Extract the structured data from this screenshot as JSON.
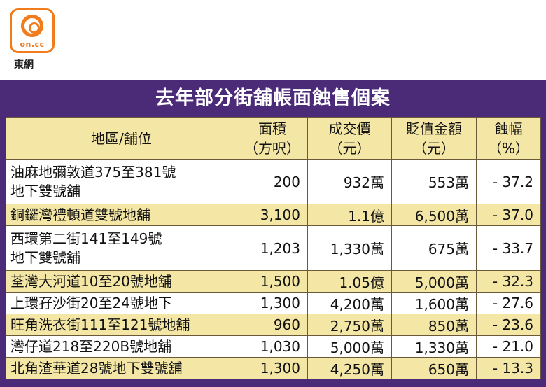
{
  "brand": {
    "logo_text": "on.cc",
    "name": "東網"
  },
  "title": "去年部分街舖帳面蝕售個案",
  "table": {
    "headers": [
      {
        "line1": "地區/舖位",
        "line2": ""
      },
      {
        "line1": "面積",
        "line2": "（方呎）"
      },
      {
        "line1": "成交價",
        "line2": "（元）"
      },
      {
        "line1": "貶值金額",
        "line2": "（元）"
      },
      {
        "line1": "蝕幅",
        "line2": "（%）"
      }
    ],
    "rows": [
      {
        "loc1": "油麻地彌敦道375至381號",
        "loc2": "地下雙號舖",
        "area": "200",
        "price": "932萬",
        "loss": "553萬",
        "pct": "- 37.2"
      },
      {
        "loc1": "銅鑼灣禮頓道雙號地舖",
        "loc2": "",
        "area": "3,100",
        "price": "1.1億",
        "loss": "6,500萬",
        "pct": "- 37.0"
      },
      {
        "loc1": "西環第二街141至149號",
        "loc2": "地下雙號舖",
        "area": "1,203",
        "price": "1,330萬",
        "loss": "675萬",
        "pct": "- 33.7"
      },
      {
        "loc1": "荃灣大河道10至20號地舖",
        "loc2": "",
        "area": "1,500",
        "price": "1.05億",
        "loss": "5,000萬",
        "pct": "- 32.3"
      },
      {
        "loc1": "上環孖沙街20至24號地下",
        "loc2": "",
        "area": "1,300",
        "price": "4,200萬",
        "loss": "1,600萬",
        "pct": "- 27.6"
      },
      {
        "loc1": "旺角洗衣街111至121號地舖",
        "loc2": "",
        "area": "960",
        "price": "2,750萬",
        "loss": "850萬",
        "pct": "- 23.6"
      },
      {
        "loc1": "灣仔道218至220B號地舖",
        "loc2": "",
        "area": "1,030",
        "price": "5,000萬",
        "loss": "1,330萬",
        "pct": "- 21.0"
      },
      {
        "loc1": "北角渣華道28號地下雙號舖",
        "loc2": "",
        "area": "1,300",
        "price": "4,250萬",
        "loss": "650萬",
        "pct": "- 13.3"
      }
    ]
  }
}
